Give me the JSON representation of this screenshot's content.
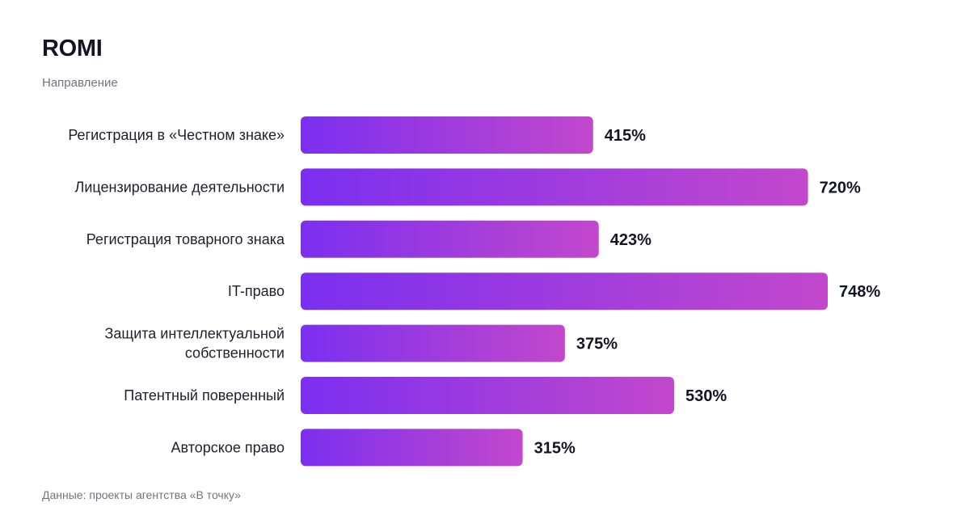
{
  "header": {
    "title": "ROMI",
    "subtitle": "Направление"
  },
  "footer": {
    "source": "Данные: проекты агентства «В точку»"
  },
  "colors": {
    "bar_start": "#7b2ff0",
    "bar_end": "#c248cc"
  },
  "chart_data": {
    "type": "bar",
    "orientation": "horizontal",
    "title": "ROMI",
    "subtitle": "Направление",
    "categories": [
      [
        "Регистрация в «Честном знаке»"
      ],
      [
        "Лицензирование деятельности"
      ],
      [
        "Регистрация товарного знака"
      ],
      [
        "IT-право"
      ],
      [
        "Защита интеллектуальной",
        "собственности"
      ],
      [
        "Патентный поверенный"
      ],
      [
        "Авторское право"
      ]
    ],
    "values": [
      415,
      720,
      423,
      748,
      375,
      530,
      315
    ],
    "value_labels": [
      "415%",
      "720%",
      "423%",
      "748%",
      "375%",
      "530%",
      "315%"
    ],
    "unit": "%",
    "grid": false,
    "legend": false
  }
}
